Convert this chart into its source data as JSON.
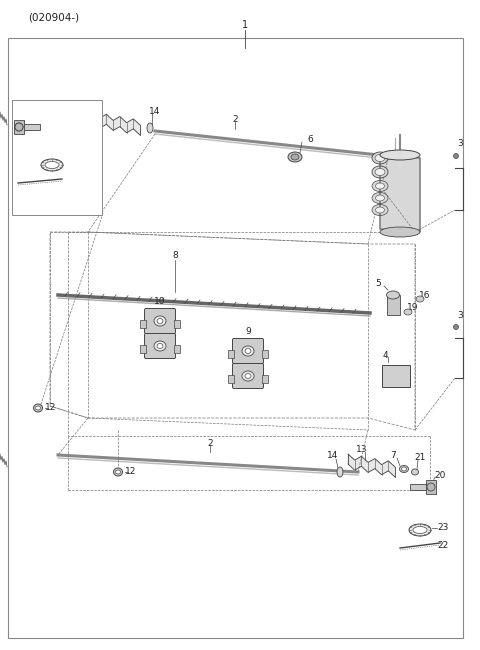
{
  "bg_color": "#ffffff",
  "lc": "#444444",
  "tc": "#222222",
  "fig_width": 4.8,
  "fig_height": 6.5,
  "dpi": 100,
  "code": "(020904-)"
}
